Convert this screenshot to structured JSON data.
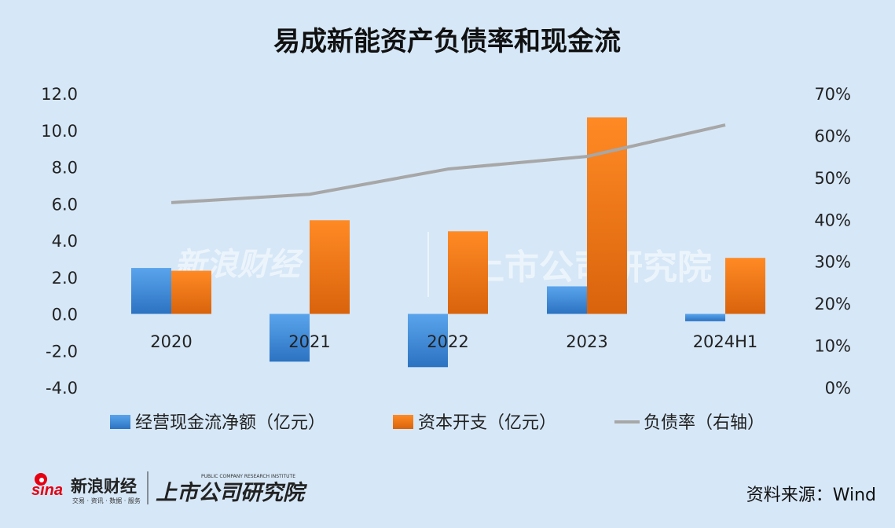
{
  "title": "易成新能资产负债率和现金流",
  "source": "资料来源：Wind",
  "brand": {
    "sina_text": "新浪财经",
    "sina_sub": "交易 · 资讯 · 数据 · 服务",
    "institute_text": "上市公司研究院",
    "institute_sub": "PUBLIC COMPANY RESEARCH INSTITUTE"
  },
  "colors": {
    "background": "#d6e7f7",
    "cashflow": "#3f8fd8",
    "capex": "#f07a1c",
    "debt_ratio": "#a7a7a7"
  },
  "chart_data": {
    "type": "bar",
    "title": "易成新能资产负债率和现金流",
    "categories": [
      "2020",
      "2021",
      "2022",
      "2023",
      "2024H1"
    ],
    "series": [
      {
        "name": "经营现金流净额（亿元）",
        "type": "bar",
        "axis": "left",
        "values": [
          2.5,
          -2.6,
          -2.9,
          1.5,
          -0.4
        ]
      },
      {
        "name": "资本开支（亿元）",
        "type": "bar",
        "axis": "left",
        "values": [
          2.35,
          5.1,
          4.5,
          10.7,
          3.05
        ]
      },
      {
        "name": "负债率（右轴）",
        "type": "line",
        "axis": "right",
        "values": [
          0.44,
          0.46,
          0.52,
          0.55,
          0.625
        ]
      }
    ],
    "y_left": {
      "min": -4.0,
      "max": 12.0,
      "step": 2.0,
      "tick_labels": [
        "-4.0",
        "-2.0",
        "0.0",
        "2.0",
        "4.0",
        "6.0",
        "8.0",
        "10.0",
        "12.0"
      ]
    },
    "y_right": {
      "min": 0,
      "max": 0.7,
      "step": 0.1,
      "tick_labels": [
        "0%",
        "10%",
        "20%",
        "30%",
        "40%",
        "50%",
        "60%",
        "70%"
      ]
    },
    "grid": false,
    "legend_position": "bottom"
  }
}
